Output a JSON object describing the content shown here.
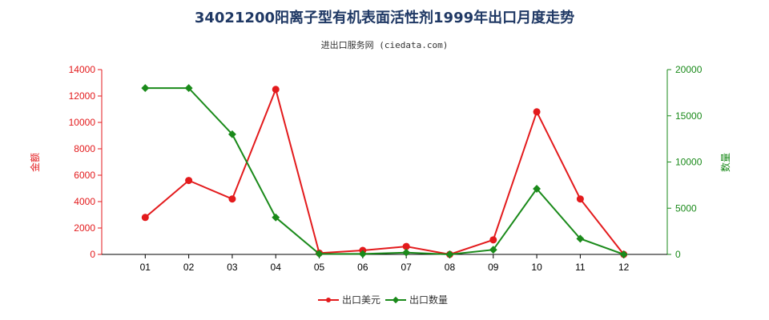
{
  "chart_data": {
    "type": "line",
    "title": "34021200阳离子型有机表面活性剂1999年出口月度走势",
    "subtitle": "进出口服务网 (ciedata.com)",
    "categories": [
      "01",
      "02",
      "03",
      "04",
      "05",
      "06",
      "07",
      "08",
      "09",
      "10",
      "11",
      "12"
    ],
    "series": [
      {
        "name": "出口美元",
        "axis": "left",
        "color": "#e31a1c",
        "values": [
          2800,
          5600,
          4200,
          12500,
          100,
          300,
          600,
          0,
          1100,
          10800,
          4200,
          0
        ]
      },
      {
        "name": "出口数量",
        "axis": "right",
        "color": "#1a8a1a",
        "values": [
          18000,
          18000,
          13000,
          4000,
          50,
          50,
          200,
          0,
          500,
          7100,
          1700,
          0
        ]
      }
    ],
    "ylabel_left": "金额",
    "ylabel_right": "数量",
    "ylim_left": [
      0,
      14000
    ],
    "ylim_right": [
      0,
      20000
    ],
    "yticks_left": [
      "0",
      "2000",
      "4000",
      "6000",
      "8000",
      "10000",
      "12000",
      "14000"
    ],
    "yticks_right": [
      "0",
      "5000",
      "10000",
      "15000",
      "20000"
    ],
    "grid": false,
    "legend_position": "bottom-center",
    "colors": {
      "left_axis": "#e31a1c",
      "right_axis": "#1a8a1a",
      "axis_line": "#000000"
    }
  }
}
